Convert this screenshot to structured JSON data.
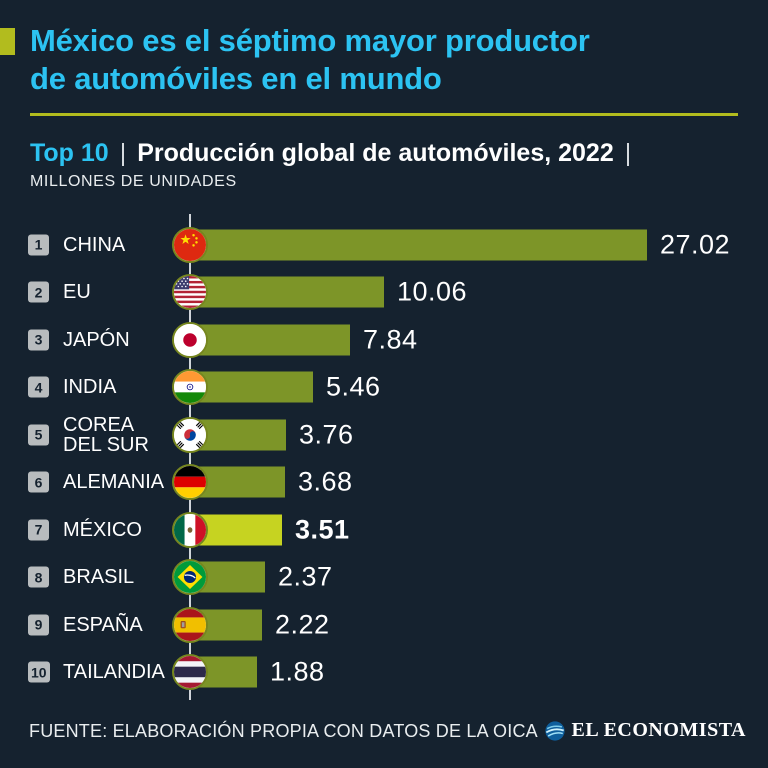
{
  "header": {
    "title_line1": "México es el séptimo mayor productor",
    "title_line2": "de automóviles en el mundo",
    "kicker_label": "Top 10",
    "separator": "|",
    "kicker_title": "Producción global de automóviles, 2022",
    "units_label": "MILLONES DE UNIDADES"
  },
  "chart_data": {
    "type": "bar",
    "orientation": "horizontal",
    "title": "Top 10 | Producción global de automóviles, 2022",
    "units": "Millones de unidades",
    "highlight_category": "MÉXICO",
    "categories": [
      "CHINA",
      "EU",
      "JAPÓN",
      "INDIA",
      "COREA DEL SUR",
      "ALEMANIA",
      "MÉXICO",
      "BRASIL",
      "ESPAÑA",
      "TAILANDIA"
    ],
    "values": [
      27.02,
      10.06,
      7.84,
      5.46,
      3.76,
      3.68,
      3.51,
      2.37,
      2.22,
      1.88
    ],
    "rows": [
      {
        "rank": "1",
        "label": "CHINA",
        "value": 27.02,
        "value_label": "27.02",
        "flag": "china",
        "highlight": false
      },
      {
        "rank": "2",
        "label": "EU",
        "value": 10.06,
        "value_label": "10.06",
        "flag": "usa",
        "highlight": false
      },
      {
        "rank": "3",
        "label": "JAPÓN",
        "value": 7.84,
        "value_label": "7.84",
        "flag": "japan",
        "highlight": false
      },
      {
        "rank": "4",
        "label": "INDIA",
        "value": 5.46,
        "value_label": "5.46",
        "flag": "india",
        "highlight": false
      },
      {
        "rank": "5",
        "label": "COREA DEL SUR",
        "value": 3.76,
        "value_label": "3.76",
        "flag": "south-korea",
        "highlight": false
      },
      {
        "rank": "6",
        "label": "ALEMANIA",
        "value": 3.68,
        "value_label": "3.68",
        "flag": "germany",
        "highlight": false
      },
      {
        "rank": "7",
        "label": "MÉXICO",
        "value": 3.51,
        "value_label": "3.51",
        "flag": "mexico",
        "highlight": true
      },
      {
        "rank": "8",
        "label": "BRASIL",
        "value": 2.37,
        "value_label": "2.37",
        "flag": "brazil",
        "highlight": false
      },
      {
        "rank": "9",
        "label": "ESPAÑA",
        "value": 2.22,
        "value_label": "2.22",
        "flag": "spain",
        "highlight": false
      },
      {
        "rank": "10",
        "label": "TAILANDIA",
        "value": 1.88,
        "value_label": "1.88",
        "flag": "thailand",
        "highlight": false
      }
    ]
  },
  "footer": {
    "source": "FUENTE: ELABORACIÓN PROPIA CON DATOS DE LA OICA",
    "brand": "EL ECONOMISTA"
  },
  "colors": {
    "background": "#15222F",
    "title_cyan": "#2CC3F2",
    "accent_yellow": "#B2BC1E",
    "bar_green": "#7D9528",
    "bar_highlight": "#C6D321",
    "badge_gray": "#B8BCBE"
  }
}
